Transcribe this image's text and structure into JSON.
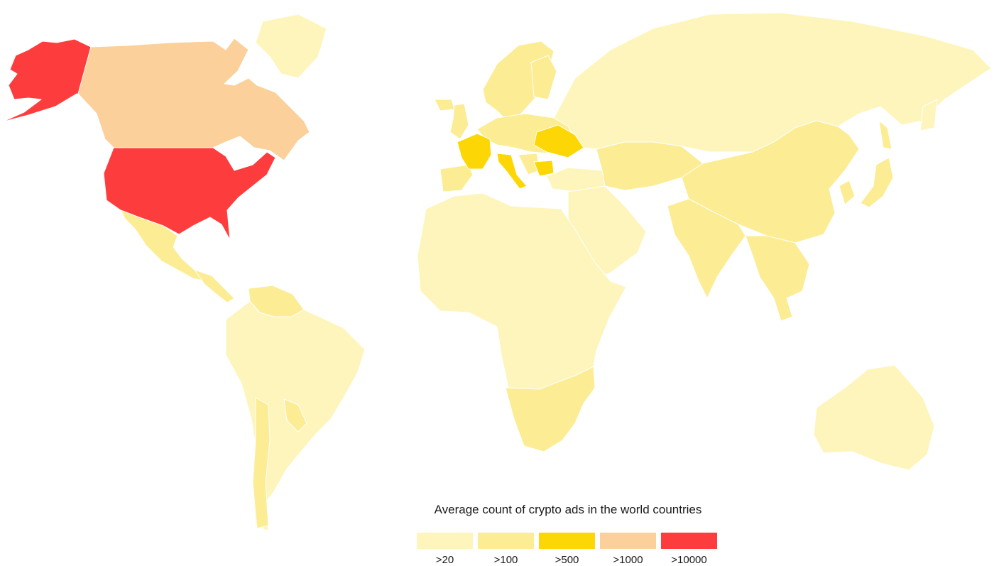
{
  "legend": {
    "title": "Average count of crypto ads in the world countries",
    "items": [
      {
        "label": ">20",
        "color": "#fef5bd"
      },
      {
        "label": ">100",
        "color": "#fcec93"
      },
      {
        "label": ">500",
        "color": "#fcd705"
      },
      {
        "label": ">1000",
        "color": "#fbd09b"
      },
      {
        "label": ">10000",
        "color": "#fd3d3d"
      }
    ]
  },
  "regions": [
    {
      "name": "United States",
      "tier": ">10000"
    },
    {
      "name": "Alaska",
      "tier": ">10000"
    },
    {
      "name": "Canada",
      "tier": ">1000"
    },
    {
      "name": "France",
      "tier": ">500"
    },
    {
      "name": "Italy",
      "tier": ">500"
    },
    {
      "name": "Ukraine",
      "tier": ">500"
    },
    {
      "name": "Bulgaria",
      "tier": ">500"
    },
    {
      "name": "Mexico",
      "tier": ">100"
    },
    {
      "name": "Venezuela",
      "tier": ">100"
    },
    {
      "name": "Spain",
      "tier": ">100"
    },
    {
      "name": "Scandinavia",
      "tier": ">100"
    },
    {
      "name": "United Kingdom",
      "tier": ">100"
    },
    {
      "name": "Central Europe",
      "tier": ">100"
    },
    {
      "name": "China",
      "tier": ">100"
    },
    {
      "name": "India",
      "tier": ">100"
    },
    {
      "name": "Southeast Asia",
      "tier": ">100"
    },
    {
      "name": "Japan",
      "tier": ">100"
    },
    {
      "name": "Southern Africa",
      "tier": ">100"
    },
    {
      "name": "Chile",
      "tier": ">100"
    },
    {
      "name": "Russia",
      "tier": ">20"
    },
    {
      "name": "Africa",
      "tier": ">20"
    },
    {
      "name": "Middle East",
      "tier": ">20"
    },
    {
      "name": "South America",
      "tier": ">20"
    },
    {
      "name": "Australia",
      "tier": ">20"
    },
    {
      "name": "Greenland",
      "tier": ">20"
    }
  ]
}
